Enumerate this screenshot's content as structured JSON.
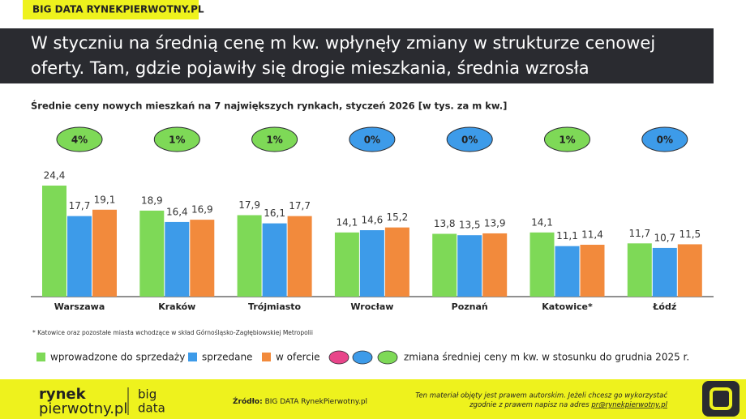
{
  "header": {
    "tag": "BIG DATA RYNEKPIERWOTNY.PL",
    "title_lines": [
      "W styczniu na średnią cenę m kw. wpłynęły zmiany w strukturze cenowej",
      "oferty. Tam, gdzie pojawiły się drogie mieszkania, średnia wzrosła"
    ]
  },
  "chart_data": {
    "type": "bar",
    "title": "Średnie ceny nowych mieszkań na 7 największych rynkach, styczeń 2026 [w tys. za m kw.]",
    "categories": [
      "Warszawa",
      "Kraków",
      "Trójmiasto",
      "Wrocław",
      "Poznań",
      "Katowice*",
      "Łódź"
    ],
    "series": [
      {
        "name": "wprowadzone do sprzedaży",
        "color": "#7ed957",
        "values": [
          24.4,
          18.9,
          17.9,
          14.1,
          13.8,
          14.1,
          11.7
        ],
        "value_labels": [
          "24,4",
          "18,9",
          "17,9",
          "14,1",
          "13,8",
          "14,1",
          "11,7"
        ]
      },
      {
        "name": "sprzedane",
        "color": "#3d9be9",
        "values": [
          17.7,
          16.4,
          16.1,
          14.6,
          13.5,
          11.1,
          10.7
        ],
        "value_labels": [
          "17,7",
          "16,4",
          "16,1",
          "14,6",
          "13,5",
          "11,1",
          "10,7"
        ]
      },
      {
        "name": "w ofercie",
        "color": "#f28a3c",
        "values": [
          19.1,
          16.9,
          17.7,
          15.2,
          13.9,
          11.4,
          11.5
        ],
        "value_labels": [
          "19,1",
          "16,9",
          "17,7",
          "15,2",
          "13,9",
          "11,4",
          "11,5"
        ]
      }
    ],
    "changes": {
      "name": "zmiana średniej ceny m kw. w stosunku do grudnia 2025 r.",
      "values": [
        4,
        1,
        1,
        0,
        0,
        1,
        0
      ],
      "value_labels": [
        "4%",
        "1%",
        "1%",
        "0%",
        "0%",
        "1%",
        "0%"
      ],
      "colors": [
        "#7ed957",
        "#7ed957",
        "#7ed957",
        "#3d9be9",
        "#3d9be9",
        "#7ed957",
        "#3d9be9"
      ],
      "legend_colors": [
        "#e8458a",
        "#3d9be9",
        "#7ed957"
      ]
    },
    "footnote": "* Katowice oraz pozostałe miasta wchodzące w skład Górnośląsko-Zagłębiowskiej Metropolii"
  },
  "footer": {
    "logo_top": "rynek",
    "logo_bottom": "pierwotny.pl",
    "logo_side_top": "big",
    "logo_side_bottom": "data",
    "source_label": "Źródło:",
    "source": "BIG DATA RynekPierwotny.pl",
    "copyright_lines": [
      "Ten materiał objęty jest prawem autorskim. Jeżeli chcesz go wykorzystać",
      "zgodnie z prawem napisz na adres"
    ],
    "email": "pr@rynekpierwotny.pl"
  }
}
